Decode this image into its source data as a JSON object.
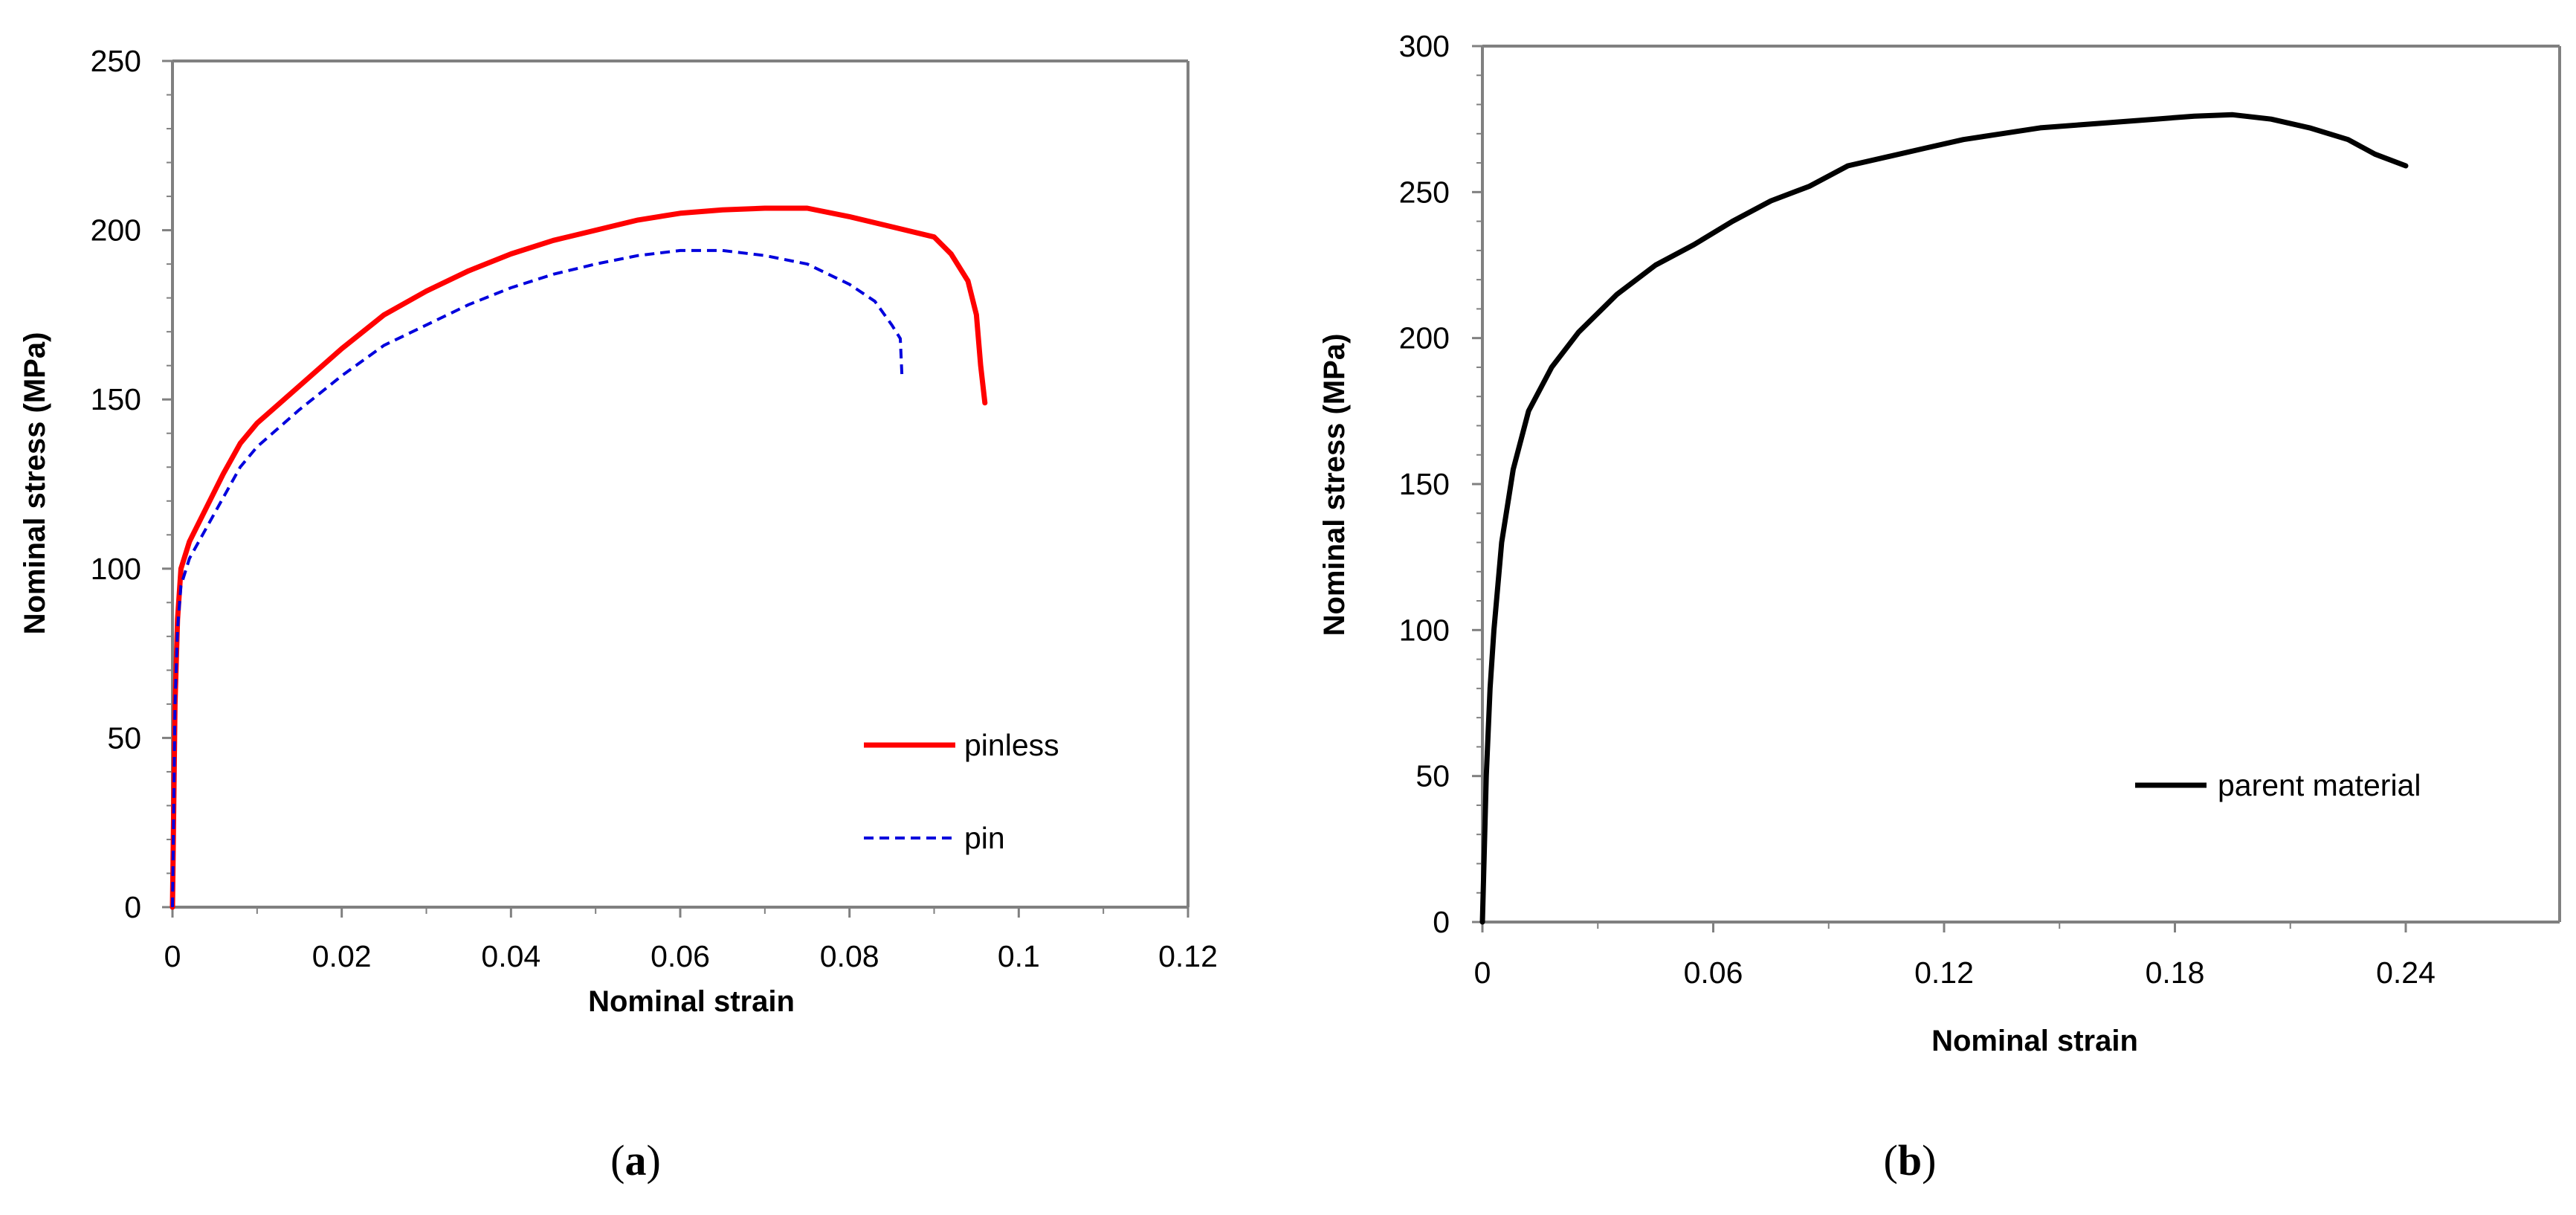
{
  "colors": {
    "pinless": "#ff0000",
    "pin": "#0000dd",
    "parent_material": "#000000",
    "axis": "#808080"
  },
  "panel_a": {
    "caption_open": "(",
    "caption_letter": "a",
    "caption_close": ")"
  },
  "panel_b": {
    "caption_open": "(",
    "caption_letter": "b",
    "caption_close": ")"
  },
  "chart_data": [
    {
      "id": "a",
      "type": "line",
      "title": "",
      "xlabel": "Nominal strain",
      "ylabel": "Nominal stress (MPa)",
      "xlim": [
        0,
        0.12
      ],
      "ylim": [
        0,
        250
      ],
      "x_ticks": [
        0,
        0.02,
        0.04,
        0.06,
        0.08,
        0.1,
        0.12
      ],
      "x_tick_labels": [
        "0",
        "0.02",
        "0.04",
        "0.06",
        "0.08",
        "0.1",
        "0.12"
      ],
      "y_ticks": [
        0,
        50,
        100,
        150,
        200,
        250
      ],
      "y_tick_labels": [
        "0",
        "50",
        "100",
        "150",
        "200",
        "250"
      ],
      "grid": false,
      "legend_position": "bottom-right",
      "series": [
        {
          "name": "pinless",
          "style": "solid",
          "x": [
            0,
            0.0003,
            0.0006,
            0.001,
            0.002,
            0.004,
            0.006,
            0.008,
            0.01,
            0.015,
            0.02,
            0.025,
            0.03,
            0.035,
            0.04,
            0.045,
            0.05,
            0.055,
            0.06,
            0.065,
            0.07,
            0.075,
            0.08,
            0.085,
            0.09,
            0.092,
            0.094,
            0.095,
            0.0955,
            0.096
          ],
          "y": [
            0,
            60,
            85,
            100,
            108,
            118,
            128,
            137,
            143,
            154,
            165,
            175,
            182,
            188,
            193,
            197,
            200,
            203,
            205,
            206,
            206.5,
            206.5,
            204,
            201,
            198,
            193,
            185,
            175,
            160,
            149
          ]
        },
        {
          "name": "pin",
          "style": "dashed",
          "x": [
            0,
            0.0003,
            0.0006,
            0.001,
            0.002,
            0.004,
            0.006,
            0.008,
            0.01,
            0.015,
            0.02,
            0.025,
            0.03,
            0.035,
            0.04,
            0.045,
            0.05,
            0.055,
            0.06,
            0.065,
            0.07,
            0.075,
            0.08,
            0.083,
            0.085,
            0.086,
            0.0862
          ],
          "y": [
            0,
            60,
            82,
            95,
            103,
            112,
            121,
            130,
            136,
            147,
            157,
            166,
            172,
            178,
            183,
            187,
            190,
            192.5,
            194,
            194,
            192.5,
            190,
            184,
            179,
            172,
            168,
            157
          ]
        }
      ]
    },
    {
      "id": "b",
      "type": "line",
      "title": "",
      "xlabel": "Nominal strain",
      "ylabel": "Nominal stress (MPa)",
      "xlim": [
        0,
        0.28
      ],
      "ylim": [
        0,
        300
      ],
      "x_ticks": [
        0,
        0.06,
        0.12,
        0.18,
        0.24
      ],
      "x_tick_labels": [
        "0",
        "0.06",
        "0.12",
        "0.18",
        "0.24"
      ],
      "y_ticks": [
        0,
        50,
        100,
        150,
        200,
        250,
        300
      ],
      "y_tick_labels": [
        "0",
        "50",
        "100",
        "150",
        "200",
        "250",
        "300"
      ],
      "grid": false,
      "legend_position": "bottom-right",
      "series": [
        {
          "name": "parent material",
          "style": "solid",
          "x": [
            0,
            0.001,
            0.002,
            0.003,
            0.005,
            0.008,
            0.012,
            0.018,
            0.025,
            0.035,
            0.045,
            0.055,
            0.065,
            0.075,
            0.085,
            0.095,
            0.105,
            0.115,
            0.125,
            0.135,
            0.145,
            0.155,
            0.165,
            0.175,
            0.185,
            0.195,
            0.205,
            0.215,
            0.225,
            0.232,
            0.24
          ],
          "y": [
            0,
            50,
            80,
            100,
            130,
            155,
            175,
            190,
            202,
            215,
            225,
            232,
            240,
            247,
            252,
            259,
            262,
            265,
            268,
            270,
            272,
            273,
            274,
            275,
            276,
            276.5,
            275,
            272,
            268,
            263,
            259
          ]
        }
      ]
    }
  ]
}
